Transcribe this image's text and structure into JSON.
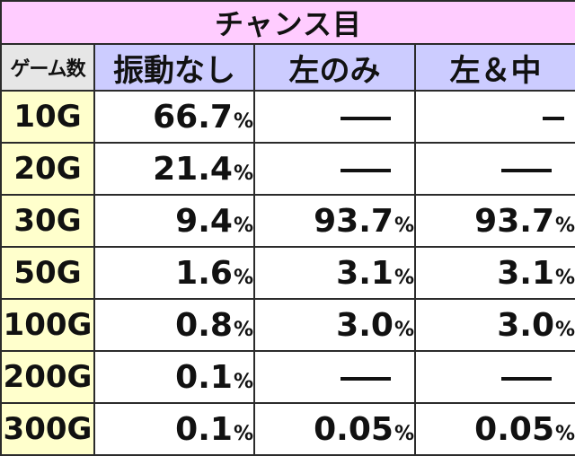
{
  "title": "チャンス目",
  "headers": [
    "ゲーム数",
    "振動なし",
    "左のみ",
    "左＆中"
  ],
  "rows": [
    {
      "game": "10G",
      "no_vibration": "66.7",
      "left_only": "—",
      "left_center": "ー"
    },
    {
      "game": "20G",
      "no_vibration": "21.4",
      "left_only": "—",
      "left_center": "—"
    },
    {
      "game": "30G",
      "no_vibration": "9.4",
      "left_only": "93.7",
      "left_center": "93.7"
    },
    {
      "game": "50G",
      "no_vibration": "1.6",
      "left_only": "3.1",
      "left_center": "3.1"
    },
    {
      "game": "100G",
      "no_vibration": "0.8",
      "left_only": "3.0",
      "left_center": "3.0"
    },
    {
      "game": "200G",
      "no_vibration": "0.1",
      "left_only": "—",
      "left_center": "—"
    },
    {
      "game": "300G",
      "no_vibration": "0.1",
      "left_only": "0.05",
      "left_center": "0.05"
    }
  ],
  "percent_sign": "%",
  "colors": {
    "title_bg": "#ffccff",
    "header_bg": "#ccccff",
    "corner_header_bg": "#e6e6e6",
    "row_header_bg": "#ffffcc",
    "border": "#2b2b2b"
  }
}
